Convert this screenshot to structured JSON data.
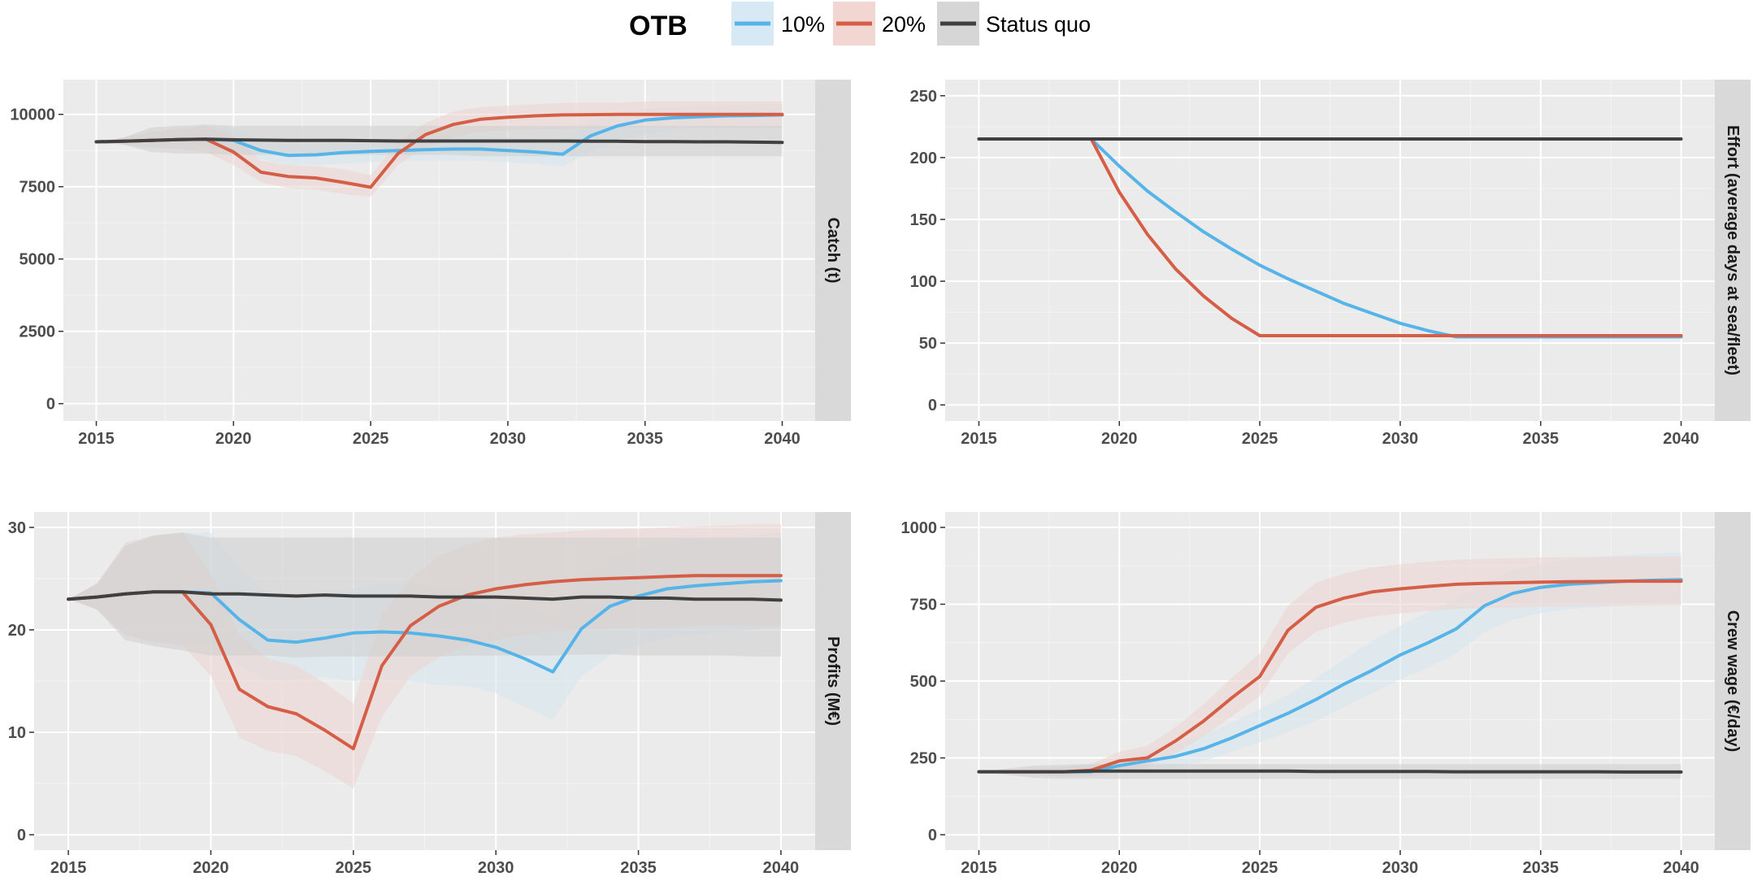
{
  "legend": {
    "title": "OTB",
    "items": [
      {
        "label": "10%",
        "color": "#56B4E9",
        "fill": "#d7e9f5"
      },
      {
        "label": "20%",
        "color": "#D55E47",
        "fill": "#f1d6d2"
      },
      {
        "label": "Status quo",
        "color": "#404040",
        "fill": "#d6d6d6"
      }
    ]
  },
  "chart_data": [
    {
      "type": "line",
      "title": "Catch (t)",
      "strip_label": "Catch (t)",
      "x": [
        2015,
        2016,
        2017,
        2018,
        2019,
        2020,
        2021,
        2022,
        2023,
        2024,
        2025,
        2026,
        2027,
        2028,
        2029,
        2030,
        2031,
        2032,
        2033,
        2034,
        2035,
        2036,
        2037,
        2038,
        2039,
        2040
      ],
      "xticks": [
        2015,
        2020,
        2025,
        2030,
        2035,
        2040
      ],
      "yticks": [
        0,
        2500,
        5000,
        7500,
        10000
      ],
      "xlim": [
        2013.8,
        2041.2
      ],
      "ylim": [
        -600,
        11200
      ],
      "series": [
        {
          "name": "10%",
          "color": "#56B4E9",
          "band": "#d6e6ef",
          "values": [
            9050,
            9070,
            9100,
            9130,
            9140,
            9100,
            8750,
            8580,
            8600,
            8680,
            8720,
            8750,
            8780,
            8800,
            8800,
            8750,
            8700,
            8620,
            9250,
            9600,
            9800,
            9880,
            9920,
            9950,
            9960,
            9980
          ],
          "lower": [
            9050,
            8950,
            8850,
            8800,
            8850,
            8800,
            8450,
            8250,
            8250,
            8300,
            8350,
            8400,
            8400,
            8400,
            8400,
            8350,
            8300,
            8200,
            8700,
            9100,
            9300,
            9450,
            9500,
            9500,
            9500,
            9550
          ],
          "upper": [
            9050,
            9200,
            9400,
            9500,
            9600,
            9550,
            9150,
            8950,
            8950,
            9050,
            9100,
            9150,
            9200,
            9250,
            9250,
            9200,
            9150,
            9100,
            9750,
            10050,
            10200,
            10250,
            10300,
            10300,
            10350,
            10350
          ]
        },
        {
          "name": "20%",
          "color": "#D55E47",
          "band": "#ecd3cf",
          "values": [
            9050,
            9070,
            9100,
            9130,
            9140,
            8700,
            8000,
            7850,
            7800,
            7650,
            7480,
            8650,
            9300,
            9650,
            9830,
            9900,
            9950,
            9980,
            9990,
            10000,
            10000,
            10000,
            10000,
            10000,
            10000,
            10000
          ],
          "lower": [
            9050,
            8950,
            8850,
            8800,
            8700,
            8250,
            7650,
            7450,
            7400,
            7250,
            7150,
            8250,
            8850,
            9200,
            9400,
            9450,
            9500,
            9500,
            9500,
            9550,
            9550,
            9550,
            9550,
            9550,
            9550,
            9550
          ],
          "upper": [
            9050,
            9200,
            9400,
            9500,
            9600,
            9250,
            8400,
            8250,
            8200,
            8100,
            7900,
            9050,
            9700,
            10100,
            10250,
            10300,
            10350,
            10400,
            10400,
            10400,
            10450,
            10450,
            10450,
            10450,
            10450,
            10450
          ]
        },
        {
          "name": "Status quo",
          "color": "#404040",
          "band": "#cdcdcd",
          "values": [
            9050,
            9070,
            9100,
            9130,
            9140,
            9120,
            9110,
            9100,
            9100,
            9100,
            9090,
            9080,
            9080,
            9080,
            9080,
            9080,
            9080,
            9080,
            9070,
            9070,
            9060,
            9060,
            9050,
            9050,
            9040,
            9030
          ],
          "lower": [
            9050,
            8950,
            8700,
            8650,
            8650,
            8600,
            8600,
            8600,
            8600,
            8600,
            8600,
            8600,
            8600,
            8600,
            8550,
            8550,
            8550,
            8550,
            8550,
            8550,
            8550,
            8550,
            8550,
            8550,
            8550,
            8550
          ],
          "upper": [
            9050,
            9200,
            9550,
            9600,
            9650,
            9600,
            9600,
            9600,
            9600,
            9600,
            9600,
            9600,
            9600,
            9600,
            9600,
            9600,
            9600,
            9600,
            9600,
            9600,
            9600,
            9600,
            9600,
            9600,
            9600,
            9600
          ]
        }
      ]
    },
    {
      "type": "line",
      "title": "Effort (average days at sea/fleet)",
      "strip_label": "Effort (average days at sea/fleet)",
      "x": [
        2015,
        2016,
        2017,
        2018,
        2019,
        2020,
        2021,
        2022,
        2023,
        2024,
        2025,
        2026,
        2027,
        2028,
        2029,
        2030,
        2031,
        2032,
        2033,
        2034,
        2035,
        2036,
        2037,
        2038,
        2039,
        2040
      ],
      "xticks": [
        2015,
        2020,
        2025,
        2030,
        2035,
        2040
      ],
      "yticks": [
        0,
        50,
        100,
        150,
        200,
        250
      ],
      "xlim": [
        2013.8,
        2041.2
      ],
      "ylim": [
        -13,
        263
      ],
      "series": [
        {
          "name": "10%",
          "color": "#56B4E9",
          "values": [
            215,
            215,
            215,
            215,
            215,
            193,
            173,
            156,
            140,
            126,
            113,
            102,
            92,
            82,
            74,
            66,
            60,
            55,
            55,
            55,
            55,
            55,
            55,
            55,
            55,
            55
          ]
        },
        {
          "name": "20%",
          "color": "#D55E47",
          "values": [
            215,
            215,
            215,
            215,
            215,
            172,
            138,
            110,
            88,
            70,
            56,
            56,
            56,
            56,
            56,
            56,
            56,
            56,
            56,
            56,
            56,
            56,
            56,
            56,
            56,
            56
          ]
        },
        {
          "name": "Status quo",
          "color": "#404040",
          "values": [
            215,
            215,
            215,
            215,
            215,
            215,
            215,
            215,
            215,
            215,
            215,
            215,
            215,
            215,
            215,
            215,
            215,
            215,
            215,
            215,
            215,
            215,
            215,
            215,
            215,
            215
          ]
        }
      ]
    },
    {
      "type": "line",
      "title": "Profits (M€)",
      "strip_label": "Profits (M€)",
      "x": [
        2015,
        2016,
        2017,
        2018,
        2019,
        2020,
        2021,
        2022,
        2023,
        2024,
        2025,
        2026,
        2027,
        2028,
        2029,
        2030,
        2031,
        2032,
        2033,
        2034,
        2035,
        2036,
        2037,
        2038,
        2039,
        2040
      ],
      "xticks": [
        2015,
        2020,
        2025,
        2030,
        2035,
        2040
      ],
      "yticks": [
        0,
        10,
        20,
        30
      ],
      "xlim": [
        2013.8,
        2041.2
      ],
      "ylim": [
        -1.5,
        31.5
      ],
      "series": [
        {
          "name": "10%",
          "color": "#56B4E9",
          "band": "#d6e6ef",
          "values": [
            23,
            23.2,
            23.5,
            23.7,
            23.7,
            23.6,
            21,
            19,
            18.8,
            19.2,
            19.7,
            19.8,
            19.7,
            19.4,
            19,
            18.3,
            17.2,
            15.9,
            20.1,
            22.3,
            23.3,
            24,
            24.3,
            24.5,
            24.7,
            24.8
          ],
          "lower": [
            23,
            22,
            19.5,
            18.8,
            18.5,
            18.5,
            16.5,
            15.2,
            15.2,
            15.4,
            15,
            15.2,
            15,
            14.6,
            14.5,
            13.8,
            12.5,
            11.2,
            15.5,
            17.5,
            18.5,
            19.2,
            19.5,
            19.8,
            20,
            20.2
          ],
          "upper": [
            23,
            24.5,
            28.5,
            29.2,
            29.5,
            29.5,
            26.2,
            23.5,
            23,
            23.5,
            24,
            24.5,
            24.5,
            24.2,
            23.8,
            23.2,
            22.5,
            21,
            25,
            27,
            28,
            28.5,
            28.8,
            29,
            29.2,
            29.5
          ]
        },
        {
          "name": "20%",
          "color": "#D55E47",
          "band": "#ecd3cf",
          "values": [
            23,
            23.2,
            23.5,
            23.7,
            23.7,
            20.5,
            14.2,
            12.5,
            11.8,
            10.2,
            8.4,
            16.5,
            20.4,
            22.3,
            23.4,
            24,
            24.4,
            24.7,
            24.9,
            25,
            25.1,
            25.2,
            25.3,
            25.3,
            25.3,
            25.3
          ],
          "lower": [
            23,
            22,
            19.5,
            18.8,
            18.5,
            15.5,
            9.5,
            8.2,
            7.7,
            6.2,
            4.5,
            11.5,
            15.5,
            17.3,
            18.5,
            19,
            19.5,
            19.8,
            20,
            20.1,
            20.2,
            20.3,
            20.4,
            20.4,
            20.4,
            20.4
          ],
          "upper": [
            23,
            24.5,
            28.5,
            29.2,
            29.5,
            25.5,
            19.5,
            17.2,
            16.5,
            14.8,
            12.8,
            21.5,
            25,
            27.2,
            28.3,
            29,
            29.3,
            29.5,
            29.7,
            29.8,
            29.9,
            30,
            30.1,
            30.2,
            30.3,
            30.3
          ]
        },
        {
          "name": "Status quo",
          "color": "#404040",
          "band": "#cdcdcd",
          "values": [
            23,
            23.2,
            23.5,
            23.7,
            23.7,
            23.5,
            23.5,
            23.4,
            23.3,
            23.4,
            23.3,
            23.3,
            23.3,
            23.2,
            23.2,
            23.2,
            23.1,
            23,
            23.2,
            23.2,
            23.1,
            23.1,
            23,
            23,
            23,
            22.9
          ],
          "lower": [
            23,
            22,
            19,
            18.4,
            18,
            17.5,
            17.5,
            17.5,
            17.3,
            17.4,
            17.4,
            17.4,
            17.4,
            17.4,
            17.5,
            17.5,
            17.5,
            17.5,
            17.6,
            17.6,
            17.5,
            17.5,
            17.5,
            17.5,
            17.4,
            17.4
          ],
          "upper": [
            23,
            24.5,
            28.2,
            29.2,
            29.5,
            29,
            29,
            29,
            29,
            29,
            29,
            29,
            29,
            29,
            29,
            29,
            29,
            29,
            29,
            29,
            29,
            29,
            29,
            29,
            29,
            29
          ]
        }
      ]
    },
    {
      "type": "line",
      "title": "Crew wage (€/day)",
      "strip_label": "Crew wage (€/day)",
      "x": [
        2015,
        2016,
        2017,
        2018,
        2019,
        2020,
        2021,
        2022,
        2023,
        2024,
        2025,
        2026,
        2027,
        2028,
        2029,
        2030,
        2031,
        2032,
        2033,
        2034,
        2035,
        2036,
        2037,
        2038,
        2039,
        2040
      ],
      "xticks": [
        2015,
        2020,
        2025,
        2030,
        2035,
        2040
      ],
      "yticks": [
        0,
        250,
        500,
        750,
        1000
      ],
      "xlim": [
        2013.8,
        2041.2
      ],
      "ylim": [
        -50,
        1050
      ],
      "series": [
        {
          "name": "10%",
          "color": "#56B4E9",
          "band": "#d6e6ef",
          "values": [
            205,
            205,
            205,
            205,
            205,
            225,
            240,
            255,
            280,
            315,
            355,
            395,
            440,
            490,
            535,
            585,
            625,
            670,
            745,
            785,
            805,
            815,
            820,
            825,
            828,
            830
          ],
          "lower": [
            205,
            200,
            195,
            190,
            190,
            200,
            210,
            220,
            240,
            270,
            300,
            335,
            370,
            415,
            460,
            505,
            545,
            590,
            660,
            700,
            720,
            735,
            740,
            745,
            748,
            750
          ],
          "upper": [
            205,
            210,
            215,
            220,
            225,
            255,
            275,
            295,
            325,
            365,
            410,
            455,
            510,
            570,
            630,
            680,
            725,
            765,
            820,
            860,
            880,
            895,
            905,
            910,
            915,
            920
          ]
        },
        {
          "name": "20%",
          "color": "#D55E47",
          "band": "#ecd3cf",
          "values": [
            205,
            205,
            205,
            205,
            210,
            240,
            250,
            305,
            370,
            445,
            515,
            665,
            740,
            770,
            790,
            800,
            808,
            815,
            818,
            820,
            822,
            823,
            824,
            825,
            825,
            825
          ],
          "lower": [
            205,
            200,
            195,
            190,
            190,
            210,
            220,
            265,
            320,
            385,
            450,
            590,
            660,
            690,
            710,
            720,
            728,
            735,
            738,
            740,
            742,
            743,
            744,
            745,
            745,
            745
          ],
          "upper": [
            205,
            210,
            215,
            220,
            230,
            270,
            290,
            350,
            425,
            510,
            590,
            745,
            820,
            850,
            870,
            880,
            888,
            895,
            898,
            900,
            902,
            903,
            904,
            905,
            905,
            905
          ]
        },
        {
          "name": "Status quo",
          "color": "#404040",
          "band": "#cdcdcd",
          "values": [
            205,
            205,
            205,
            205,
            207,
            207,
            207,
            207,
            207,
            207,
            207,
            207,
            206,
            206,
            206,
            206,
            206,
            205,
            205,
            205,
            205,
            205,
            205,
            204,
            204,
            204
          ],
          "lower": [
            205,
            195,
            185,
            182,
            182,
            182,
            182,
            182,
            182,
            182,
            182,
            182,
            182,
            182,
            182,
            182,
            182,
            182,
            182,
            182,
            182,
            182,
            182,
            182,
            182,
            182
          ],
          "upper": [
            205,
            215,
            225,
            228,
            230,
            230,
            230,
            230,
            230,
            230,
            230,
            230,
            230,
            230,
            230,
            230,
            230,
            230,
            230,
            230,
            230,
            230,
            230,
            230,
            230,
            230
          ]
        }
      ]
    }
  ]
}
